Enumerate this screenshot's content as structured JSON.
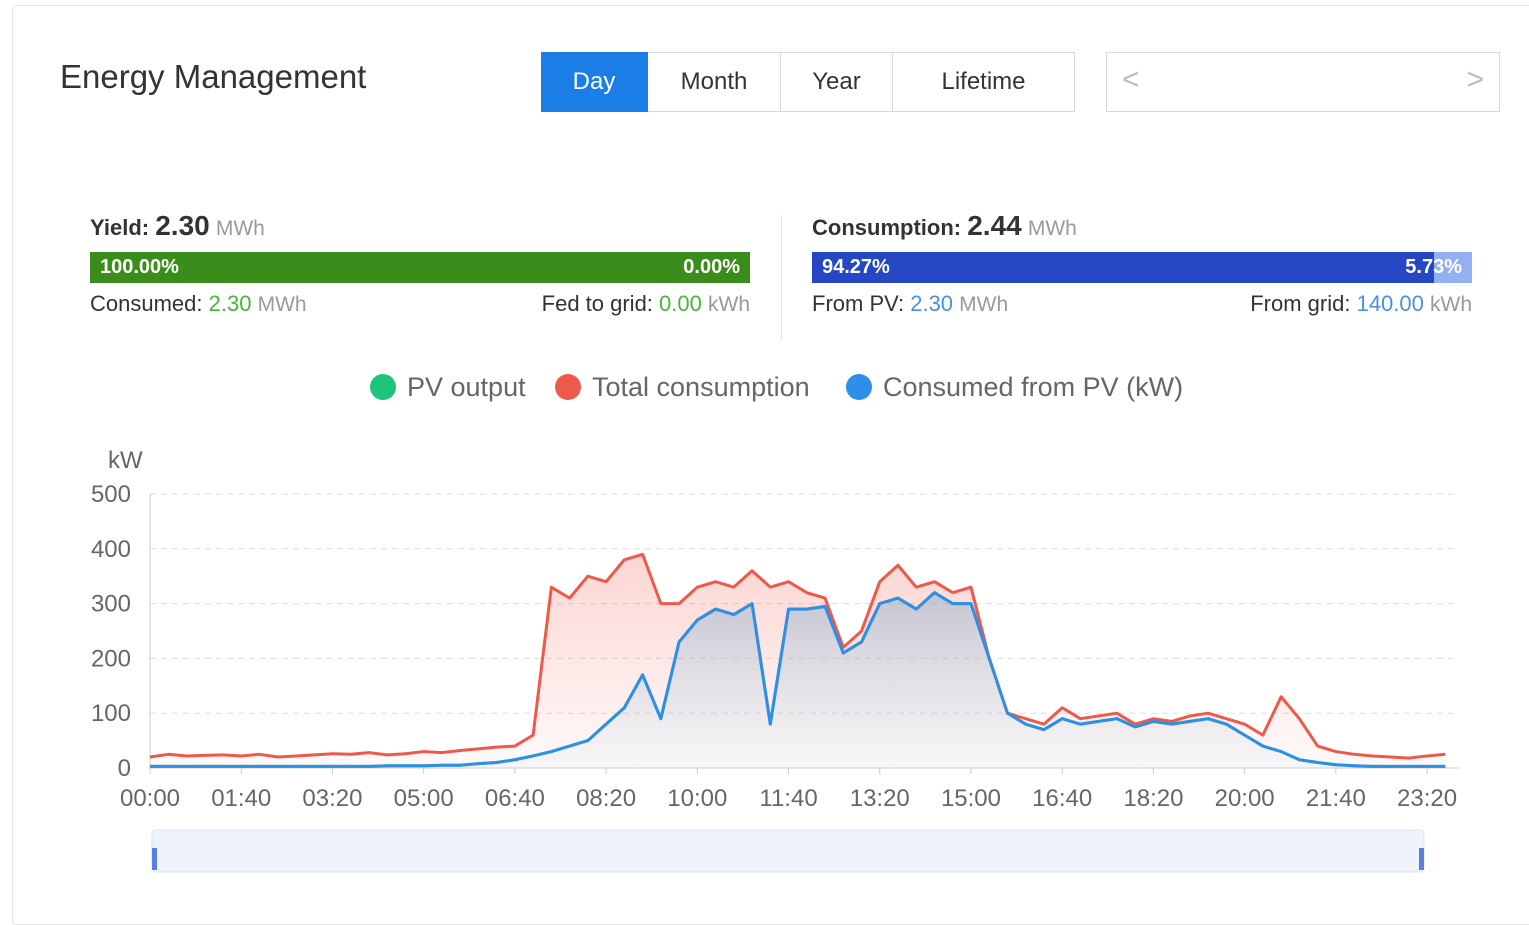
{
  "header": {
    "title": "Energy Management",
    "tabs": [
      "Day",
      "Month",
      "Year",
      "Lifetime"
    ]
  },
  "summary": {
    "yield": {
      "label": "Yield:",
      "value": "2.30",
      "unit": "MWh",
      "left": {
        "value": 100,
        "label": "100.00%"
      },
      "right": {
        "value": 0,
        "label": "0.00%"
      },
      "left_text": "Consumed:",
      "left_value": "2.30",
      "left_unit": "MWh",
      "right_text": "Fed to grid:",
      "right_value": "0.00",
      "right_unit": "kWh"
    },
    "consumption": {
      "label": "Consumption:",
      "value": "2.44",
      "unit": "MWh",
      "left": {
        "value": 94.27,
        "label": "94.27%"
      },
      "right": {
        "value": 5.73,
        "label": "5.73%"
      },
      "left_text": "From PV:",
      "left_value": "2.30",
      "left_unit": "MWh",
      "right_text": "From grid:",
      "right_value": "140.00",
      "right_unit": "kWh"
    }
  },
  "chart_data": {
    "type": "line",
    "y_label": "kW",
    "x": [
      0,
      20,
      40,
      60,
      80,
      100,
      120,
      140,
      160,
      180,
      200,
      220,
      240,
      260,
      280,
      300,
      320,
      340,
      360,
      380,
      400,
      420,
      440,
      460,
      480,
      500,
      520,
      540,
      560,
      580,
      600,
      620,
      640,
      660,
      680,
      700,
      720,
      740,
      760,
      780,
      800,
      820,
      840,
      860,
      880,
      900,
      920,
      940,
      960,
      980,
      1000,
      1020,
      1040,
      1060,
      1080,
      1100,
      1120,
      1140,
      1160,
      1180,
      1200,
      1220,
      1240,
      1260,
      1280,
      1300,
      1320,
      1340,
      1360,
      1380,
      1400,
      1420
    ],
    "xlim": [
      0,
      1435
    ],
    "xticks": [
      {
        "value": 0,
        "label": "00:00"
      },
      {
        "value": 100,
        "label": "01:40"
      },
      {
        "value": 200,
        "label": "03:20"
      },
      {
        "value": 300,
        "label": "05:00"
      },
      {
        "value": 400,
        "label": "06:40"
      },
      {
        "value": 500,
        "label": "08:20"
      },
      {
        "value": 600,
        "label": "10:00"
      },
      {
        "value": 700,
        "label": "11:40"
      },
      {
        "value": 800,
        "label": "13:20"
      },
      {
        "value": 900,
        "label": "15:00"
      },
      {
        "value": 1000,
        "label": "16:40"
      },
      {
        "value": 1100,
        "label": "18:20"
      },
      {
        "value": 1200,
        "label": "20:00"
      },
      {
        "value": 1300,
        "label": "21:40"
      },
      {
        "value": 1400,
        "label": "23:20"
      }
    ],
    "ylim": [
      0,
      500
    ],
    "yticks": [
      0,
      100,
      200,
      300,
      400,
      500
    ],
    "grid": true,
    "series": [
      {
        "name": "PV output",
        "color": "#1ec47a",
        "values": [
          3,
          3,
          3,
          3,
          3,
          3,
          3,
          3,
          3,
          3,
          3,
          3,
          3,
          4,
          4,
          4,
          5,
          5,
          8,
          10,
          15,
          22,
          30,
          40,
          50,
          80,
          110,
          170,
          90,
          230,
          270,
          290,
          280,
          300,
          80,
          290,
          290,
          295,
          210,
          230,
          300,
          310,
          290,
          320,
          300,
          300,
          200,
          100,
          80,
          70,
          90,
          80,
          85,
          90,
          75,
          85,
          80,
          85,
          90,
          80,
          60,
          40,
          30,
          15,
          10,
          6,
          4,
          3,
          3,
          3,
          3,
          3
        ]
      },
      {
        "name": "Total consumption",
        "color": "#ee5a4a",
        "values": [
          20,
          25,
          22,
          23,
          24,
          22,
          25,
          20,
          22,
          24,
          26,
          25,
          28,
          24,
          26,
          30,
          28,
          32,
          35,
          38,
          40,
          60,
          330,
          310,
          350,
          340,
          380,
          390,
          300,
          300,
          330,
          340,
          330,
          360,
          330,
          340,
          320,
          310,
          220,
          250,
          340,
          370,
          330,
          340,
          320,
          330,
          200,
          100,
          90,
          80,
          110,
          90,
          95,
          100,
          80,
          90,
          85,
          95,
          100,
          90,
          80,
          60,
          130,
          90,
          40,
          30,
          25,
          22,
          20,
          18,
          22,
          25
        ]
      },
      {
        "name": "Consumed from PV (kW)",
        "color": "#2f8ee8",
        "values": [
          3,
          3,
          3,
          3,
          3,
          3,
          3,
          3,
          3,
          3,
          3,
          3,
          3,
          4,
          4,
          4,
          5,
          5,
          8,
          10,
          15,
          22,
          30,
          40,
          50,
          80,
          110,
          170,
          90,
          230,
          270,
          290,
          280,
          300,
          80,
          290,
          290,
          295,
          210,
          230,
          300,
          310,
          290,
          320,
          300,
          300,
          200,
          100,
          80,
          70,
          90,
          80,
          85,
          90,
          75,
          85,
          80,
          85,
          90,
          80,
          60,
          40,
          30,
          15,
          10,
          6,
          4,
          3,
          3,
          3,
          3,
          3
        ]
      }
    ]
  }
}
